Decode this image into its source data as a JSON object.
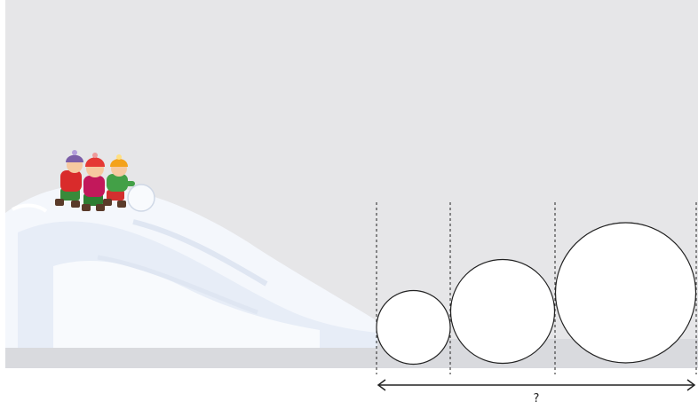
{
  "scene": {
    "sky_color": "#e6e6e8",
    "snow_color": "#f4f7fc",
    "snow_shadow_color": "#dfe6f2",
    "ground_color": "#d9dade"
  },
  "children": [
    {
      "hat_color": "#7b5ea7",
      "jacket_color": "#d92b2b",
      "pants_color": "#3a8a3a"
    },
    {
      "hat_color": "#e53935",
      "jacket_color": "#c2185b",
      "pants_color": "#2e7d32"
    },
    {
      "hat_color": "#f4a21b",
      "jacket_color": "#43a047",
      "pants_color": "#d32f2f"
    }
  ],
  "snowballs": {
    "count": 3,
    "relative_sizes": [
      1,
      1.4,
      1.9
    ]
  },
  "measure": {
    "label": "?"
  }
}
